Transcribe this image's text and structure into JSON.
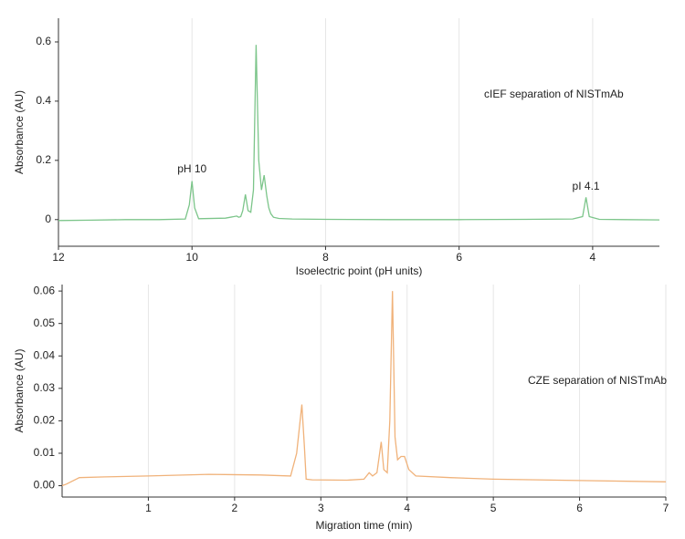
{
  "chart_data": [
    {
      "type": "line",
      "color": "#7cc58a",
      "xlabel": "Isoelectric point (pH units)",
      "ylabel": "Absorbance (AU)",
      "label": "cIEF separation of NISTmAb",
      "annotations": [
        "pH 10",
        "pI 4.1"
      ],
      "xlim": [
        12,
        3
      ],
      "xticks": [
        12,
        10,
        8,
        6,
        4
      ],
      "ylim": [
        -0.09,
        0.68
      ],
      "yticks": [
        0,
        0.2,
        0.4,
        0.6
      ],
      "grid": "x",
      "x": [
        12,
        11.5,
        11,
        10.5,
        10.1,
        10.04,
        10.0,
        9.96,
        9.9,
        9.5,
        9.33,
        9.3,
        9.27,
        9.24,
        9.2,
        9.16,
        9.12,
        9.08,
        9.04,
        9.0,
        8.96,
        8.92,
        8.88,
        8.85,
        8.82,
        8.78,
        8.7,
        8.5,
        8,
        7,
        6,
        5,
        4.3,
        4.15,
        4.1,
        4.05,
        3.9,
        3.5,
        3
      ],
      "values": [
        -0.003,
        -0.002,
        0,
        0,
        0.002,
        0.05,
        0.13,
        0.04,
        0.003,
        0.005,
        0.012,
        0.008,
        0.01,
        0.03,
        0.085,
        0.03,
        0.025,
        0.1,
        0.59,
        0.2,
        0.1,
        0.15,
        0.08,
        0.04,
        0.02,
        0.008,
        0.004,
        0.002,
        0.001,
        0,
        0,
        0.001,
        0.002,
        0.01,
        0.075,
        0.01,
        0.001,
        0,
        -0.001
      ]
    },
    {
      "type": "line",
      "color": "#f0b27a",
      "xlabel": "Migration time (min)",
      "ylabel": "Absorbance (AU)",
      "label": "CZE separation of NISTmAb",
      "xlim": [
        0,
        7
      ],
      "xticks": [
        1,
        2,
        3,
        4,
        5,
        6,
        7
      ],
      "ylim": [
        -0.0035,
        0.062
      ],
      "yticks": [
        {
          "value": 0,
          "label": "0.00"
        },
        0.01,
        0.02,
        0.03,
        0.04,
        0.05,
        0.06
      ],
      "grid": "x",
      "x": [
        0,
        0.05,
        0.2,
        0.5,
        1,
        1.7,
        2.3,
        2.65,
        2.72,
        2.78,
        2.81,
        2.83,
        2.9,
        3.3,
        3.5,
        3.56,
        3.6,
        3.65,
        3.7,
        3.73,
        3.77,
        3.8,
        3.83,
        3.86,
        3.89,
        3.93,
        3.97,
        4.02,
        4.1,
        4.5,
        5,
        6,
        7
      ],
      "values": [
        0,
        0.0005,
        0.0025,
        0.0027,
        0.003,
        0.0035,
        0.0033,
        0.003,
        0.01,
        0.025,
        0.012,
        0.002,
        0.0018,
        0.0017,
        0.002,
        0.004,
        0.003,
        0.004,
        0.0135,
        0.005,
        0.004,
        0.02,
        0.06,
        0.015,
        0.008,
        0.009,
        0.009,
        0.005,
        0.003,
        0.0025,
        0.002,
        0.0016,
        0.0012
      ]
    }
  ]
}
